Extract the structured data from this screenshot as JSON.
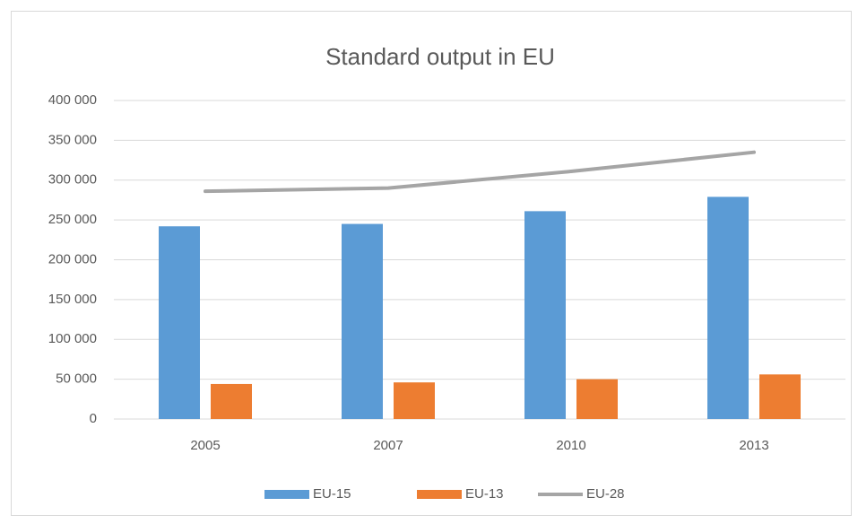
{
  "chart_data": {
    "type": "bar",
    "title": "Standard output in EU",
    "categories": [
      "2005",
      "2007",
      "2010",
      "2013"
    ],
    "series": [
      {
        "name": "EU-15",
        "color": "#5b9bd5",
        "values": [
          242000,
          245000,
          261000,
          279000
        ]
      },
      {
        "name": "EU-13",
        "color": "#ed7d31",
        "values": [
          44000,
          46000,
          50000,
          56000
        ]
      },
      {
        "name": "EU-28",
        "color": "#a5a5a5",
        "type": "line",
        "values": [
          286000,
          290000,
          311000,
          335000
        ]
      }
    ],
    "ylim": [
      0,
      400000
    ],
    "yticks": [
      0,
      {
        "value": 50000,
        "label": "50 000"
      },
      {
        "value": 100000,
        "label": "100 000"
      },
      {
        "value": 150000,
        "label": "150 000"
      },
      {
        "value": 200000,
        "label": "200 000"
      },
      {
        "value": 250000,
        "label": "250 000"
      },
      {
        "value": 300000,
        "label": "300 000"
      },
      {
        "value": 350000,
        "label": "350 000"
      },
      {
        "value": 400000,
        "label": "400 000"
      }
    ],
    "grid": true,
    "legend": "bottom"
  }
}
